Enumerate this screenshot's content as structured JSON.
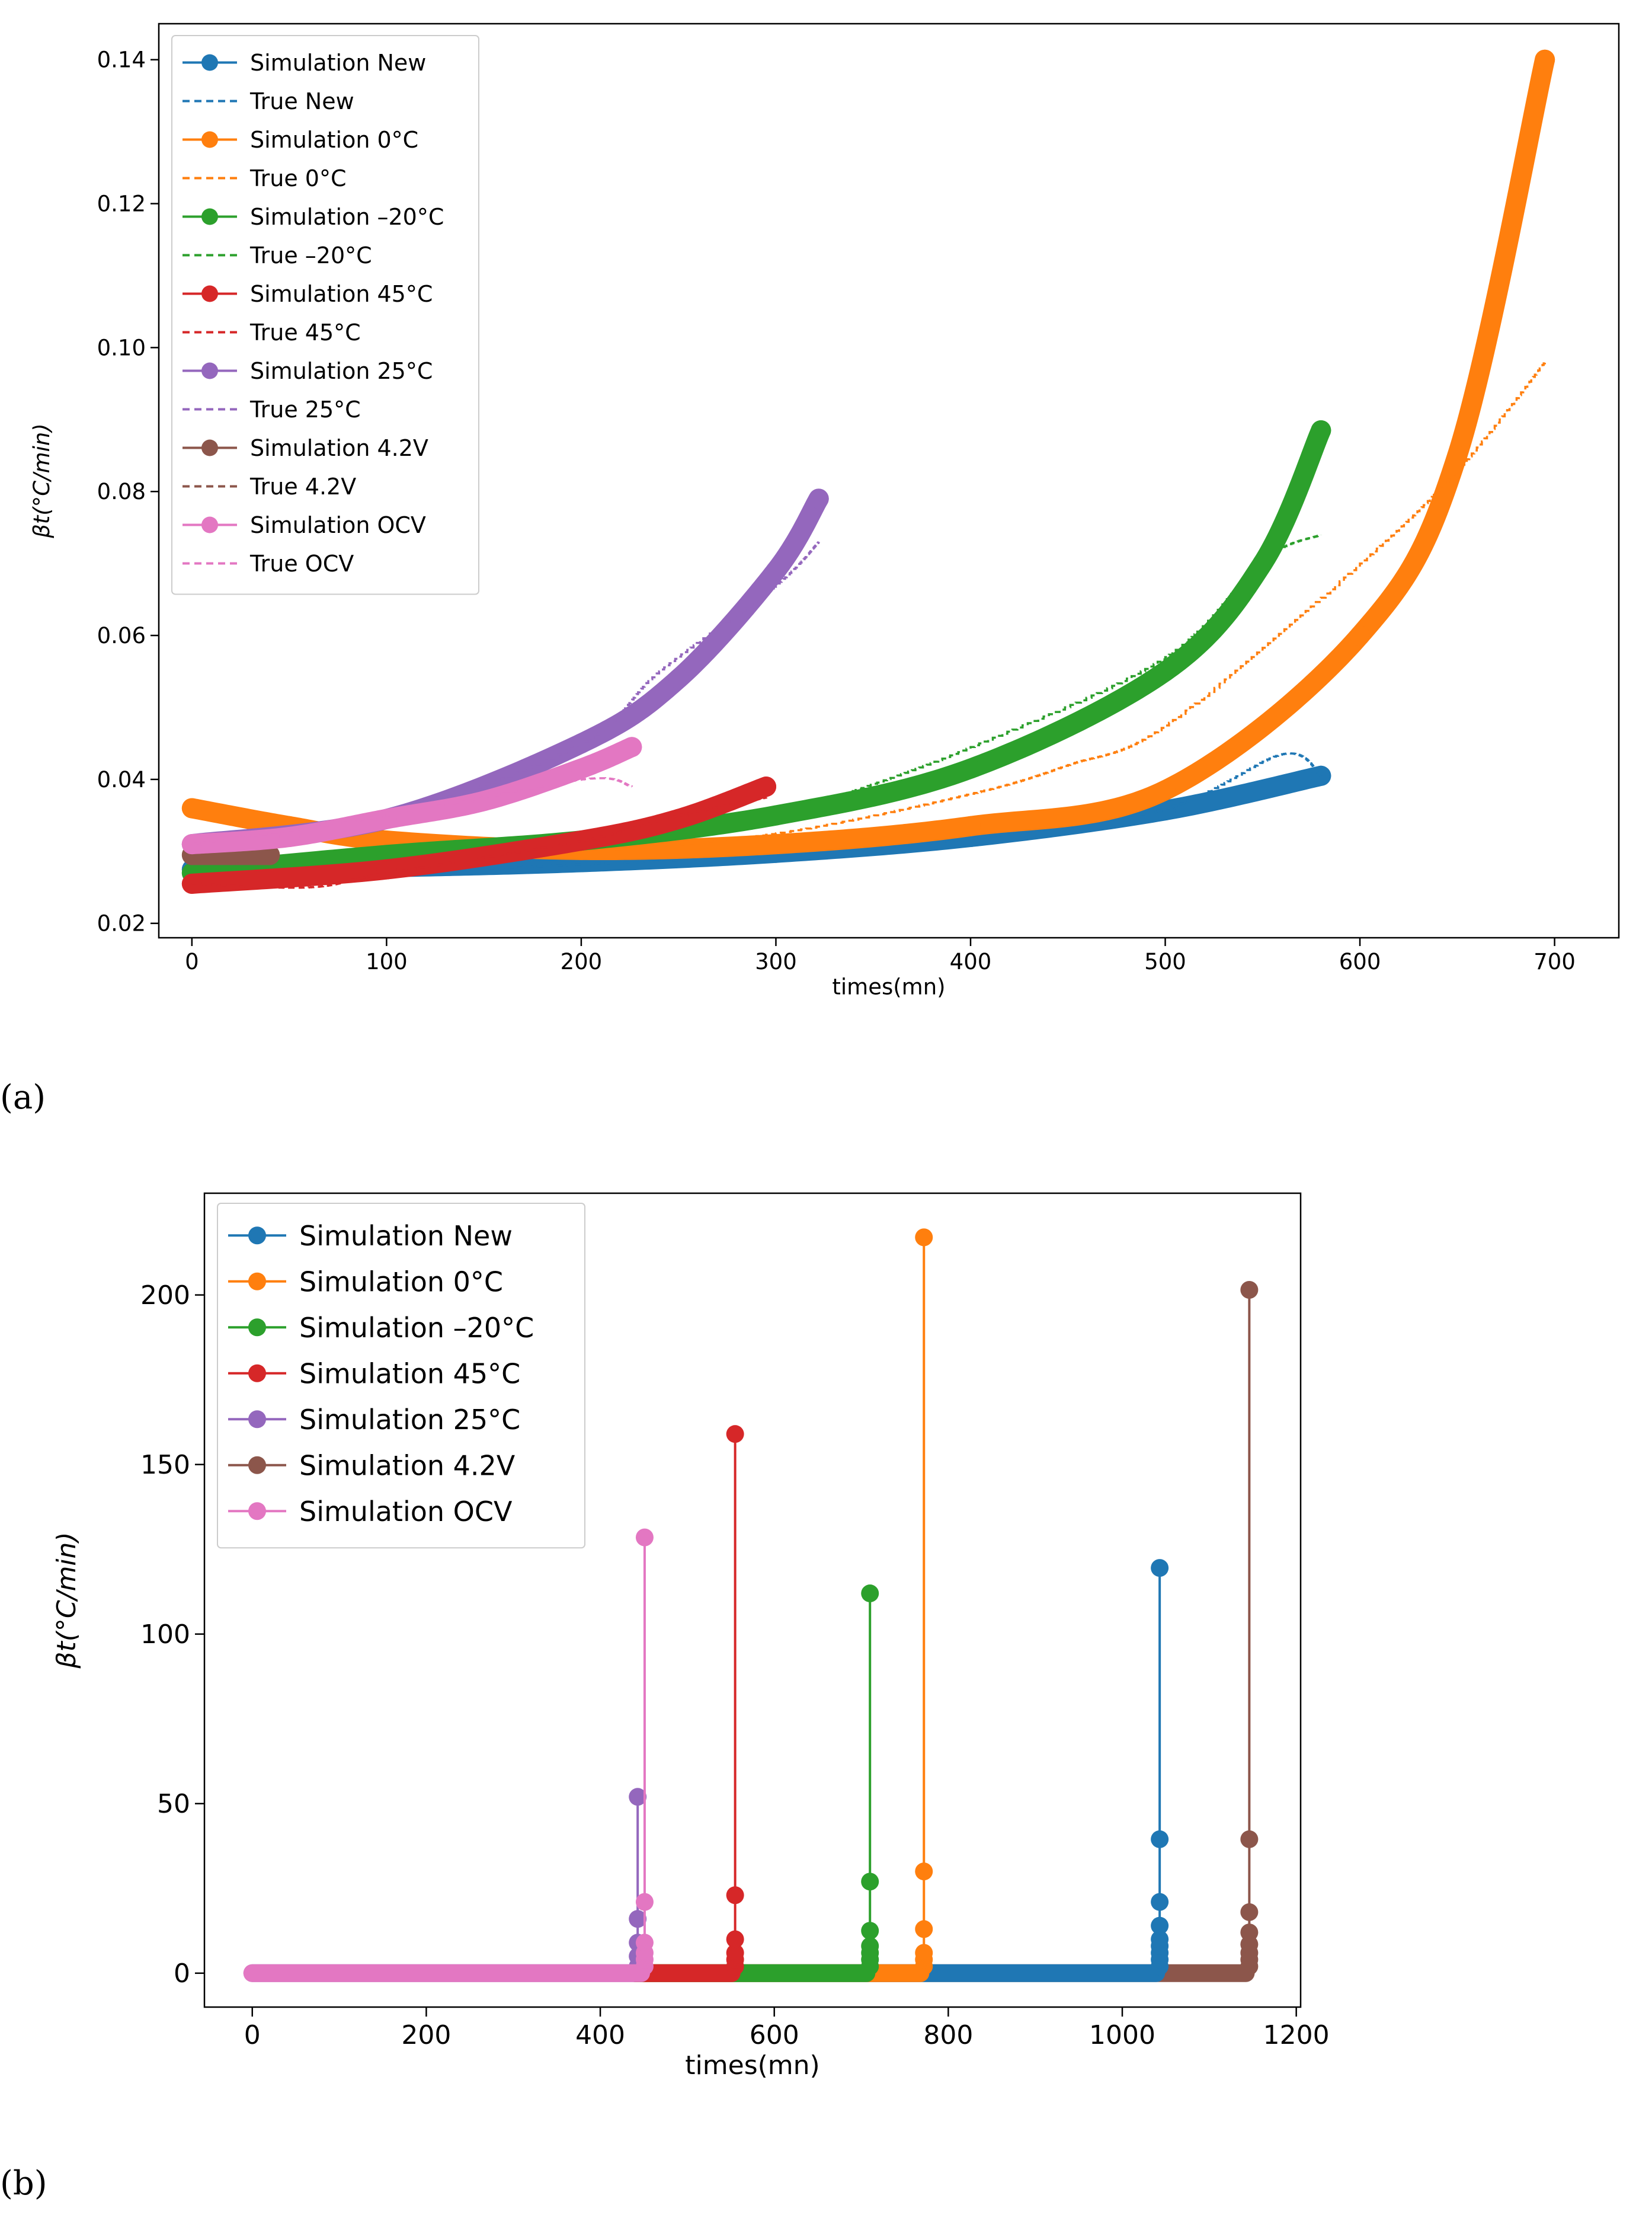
{
  "colors": {
    "New": "#1f77b4",
    "0C": "#ff7f0e",
    "m20C": "#2ca02c",
    "45C": "#d62728",
    "25C": "#9467bd",
    "42V": "#8c564b",
    "OCV": "#e377c2"
  },
  "chart_data": [
    {
      "type": "line",
      "panel_label": "(a)",
      "title": "",
      "xlabel": "times(mn)",
      "ylabel": "βt(°C/min)",
      "xlim": [
        -17,
        733
      ],
      "ylim": [
        0.018,
        0.145
      ],
      "xticks": [
        0,
        100,
        200,
        300,
        400,
        500,
        600,
        700
      ],
      "xtick_labels": [
        "0",
        "100",
        "200",
        "300",
        "400",
        "500",
        "600",
        "700"
      ],
      "yticks": [
        0.02,
        0.04,
        0.06,
        0.08,
        0.1,
        0.12,
        0.14
      ],
      "ytick_labels": [
        "0.02",
        "0.04",
        "0.06",
        "0.08",
        "0.10",
        "0.12",
        "0.14"
      ],
      "legend_position": "top-left",
      "legend": [
        "Simulation New",
        "True New",
        "Simulation 0°C",
        "True 0°C",
        "Simulation –20°C",
        "True –20°C",
        "Simulation 45°C",
        "True 45°C",
        "Simulation 25°C",
        "True 25°C",
        "Simulation  4.2V",
        "True  4.2V",
        "Simulation OCV",
        "True OCV"
      ],
      "series": [
        {
          "name": "Simulation New",
          "color_key": "New",
          "style": "marker",
          "x": [
            0,
            100,
            200,
            300,
            400,
            500,
            580
          ],
          "y": [
            0.0275,
            0.0278,
            0.0285,
            0.0298,
            0.032,
            0.0357,
            0.0405
          ]
        },
        {
          "name": "True New",
          "color_key": "New",
          "style": "dashed",
          "x": [
            0,
            100,
            200,
            300,
            400,
            500,
            560,
            580
          ],
          "y": [
            0.0275,
            0.0272,
            0.0282,
            0.0295,
            0.0318,
            0.036,
            0.0435,
            0.0405
          ]
        },
        {
          "name": "Simulation 0°C",
          "color_key": "0C",
          "style": "marker",
          "x": [
            0,
            50,
            100,
            200,
            300,
            400,
            500,
            600,
            650,
            695
          ],
          "y": [
            0.036,
            0.0335,
            0.0315,
            0.0302,
            0.031,
            0.0335,
            0.0385,
            0.06,
            0.085,
            0.14
          ]
        },
        {
          "name": "True 0°C",
          "color_key": "0C",
          "style": "dashed",
          "x": [
            0,
            100,
            200,
            300,
            400,
            450,
            500,
            600,
            650,
            695
          ],
          "y": [
            0.0275,
            0.029,
            0.03,
            0.0325,
            0.038,
            0.042,
            0.0475,
            0.07,
            0.083,
            0.098
          ]
        },
        {
          "name": "Simulation –20°C",
          "color_key": "m20C",
          "style": "marker",
          "x": [
            0,
            100,
            200,
            300,
            400,
            500,
            550,
            580
          ],
          "y": [
            0.027,
            0.0295,
            0.0315,
            0.035,
            0.0415,
            0.055,
            0.07,
            0.0885
          ]
        },
        {
          "name": "True –20°C",
          "color_key": "m20C",
          "style": "dashed",
          "x": [
            0,
            100,
            200,
            300,
            330,
            400,
            500,
            550,
            580
          ],
          "y": [
            0.0265,
            0.029,
            0.031,
            0.035,
            0.0375,
            0.0445,
            0.057,
            0.0705,
            0.074
          ]
        },
        {
          "name": "Simulation 45°C",
          "color_key": "45C",
          "style": "marker",
          "x": [
            0,
            100,
            200,
            250,
            295
          ],
          "y": [
            0.0255,
            0.0275,
            0.0315,
            0.0345,
            0.039
          ]
        },
        {
          "name": "True 45°C",
          "color_key": "45C",
          "style": "dashed",
          "x": [
            0,
            60,
            100,
            200,
            250,
            295
          ],
          "y": [
            0.0255,
            0.025,
            0.027,
            0.0315,
            0.035,
            0.0375
          ]
        },
        {
          "name": "Simulation 25°C",
          "color_key": "25C",
          "style": "marker",
          "x": [
            0,
            100,
            200,
            250,
            300,
            322
          ],
          "y": [
            0.031,
            0.0345,
            0.045,
            0.054,
            0.069,
            0.079
          ]
        },
        {
          "name": "True 25°C",
          "color_key": "25C",
          "style": "dashed",
          "x": [
            0,
            100,
            200,
            240,
            300,
            322
          ],
          "y": [
            0.031,
            0.035,
            0.045,
            0.055,
            0.067,
            0.073
          ]
        },
        {
          "name": "Simulation  4.2V",
          "color_key": "42V",
          "style": "marker",
          "x": [
            0,
            20,
            40
          ],
          "y": [
            0.0295,
            0.0295,
            0.0295
          ]
        },
        {
          "name": "True  4.2V",
          "color_key": "42V",
          "style": "dashed",
          "x": [
            0,
            20,
            40
          ],
          "y": [
            0.029,
            0.0285,
            0.029
          ]
        },
        {
          "name": "Simulation OCV",
          "color_key": "OCV",
          "style": "marker",
          "x": [
            0,
            50,
            100,
            150,
            200,
            226
          ],
          "y": [
            0.031,
            0.032,
            0.0345,
            0.037,
            0.0415,
            0.0445
          ]
        },
        {
          "name": "True OCV",
          "color_key": "OCV",
          "style": "dashed",
          "x": [
            0,
            100,
            200,
            226
          ],
          "y": [
            0.031,
            0.035,
            0.04,
            0.039
          ]
        }
      ]
    },
    {
      "type": "line",
      "panel_label": "(b)",
      "title": "",
      "xlabel": "times(mn)",
      "ylabel": "βt(°C/min)",
      "xlim": [
        -55,
        1205
      ],
      "ylim": [
        -10,
        230
      ],
      "xticks": [
        0,
        200,
        400,
        600,
        800,
        1000,
        1200
      ],
      "xtick_labels": [
        "0",
        "200",
        "400",
        "600",
        "800",
        "1000",
        "1200"
      ],
      "yticks": [
        0,
        50,
        100,
        150,
        200
      ],
      "ytick_labels": [
        "0",
        "50",
        "100",
        "150",
        "200"
      ],
      "legend_position": "top-left",
      "legend": [
        "Simulation New",
        "Simulation 0°C",
        "Simulation –20°C",
        "Simulation 45°C",
        "Simulation 25°C",
        "Simulation  4.2V",
        "Simulation OCV"
      ],
      "series": [
        {
          "name": "Simulation New",
          "color_key": "New",
          "end_x": 1043,
          "baseline": 0,
          "spike_values": [
            2,
            4,
            6,
            8,
            10,
            14,
            21,
            39.5,
            119.5
          ]
        },
        {
          "name": "Simulation 0°C",
          "color_key": "0C",
          "end_x": 772,
          "baseline": 0,
          "spike_values": [
            2,
            4,
            6,
            13,
            30,
            217
          ]
        },
        {
          "name": "Simulation –20°C",
          "color_key": "m20C",
          "end_x": 710,
          "baseline": 0,
          "spike_values": [
            2,
            4,
            6,
            8,
            12.5,
            27,
            112
          ]
        },
        {
          "name": "Simulation 45°C",
          "color_key": "45C",
          "end_x": 555,
          "baseline": 0,
          "spike_values": [
            2,
            4,
            6,
            10,
            23,
            159
          ]
        },
        {
          "name": "Simulation 25°C",
          "color_key": "25C",
          "end_x": 443,
          "baseline": 0,
          "spike_values": [
            2,
            5,
            9,
            16,
            52
          ]
        },
        {
          "name": "Simulation  4.2V",
          "color_key": "42V",
          "end_x": 1146,
          "baseline": 0,
          "spike_values": [
            2,
            4,
            6,
            8.5,
            12,
            18,
            39.5,
            201.5
          ]
        },
        {
          "name": "Simulation OCV",
          "color_key": "OCV",
          "end_x": 451,
          "baseline": 0,
          "spike_values": [
            2,
            4,
            6,
            9,
            21,
            128.5
          ]
        }
      ]
    }
  ]
}
